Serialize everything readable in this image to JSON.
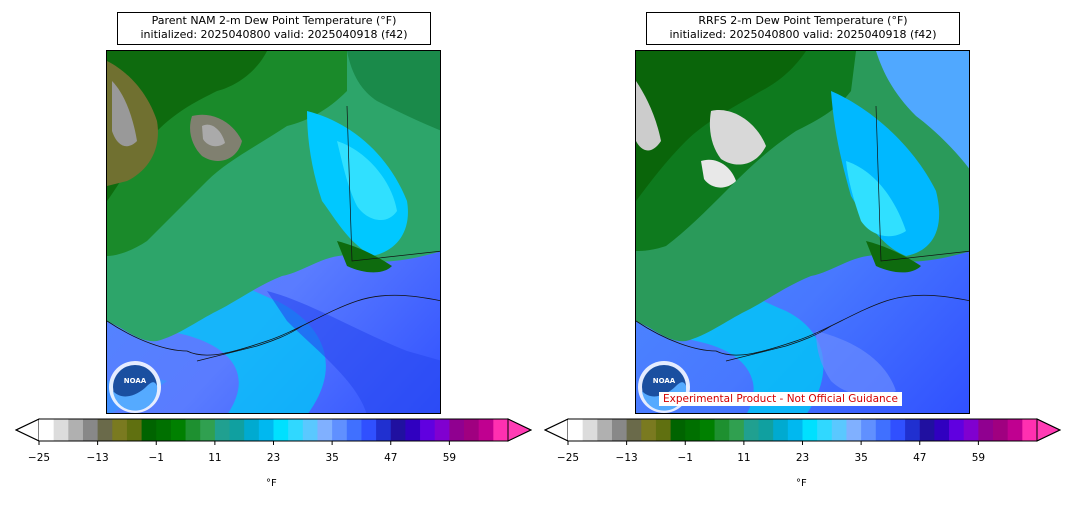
{
  "panels": [
    {
      "id": "nam",
      "title_line1": "Parent NAM 2-m Dew Point Temperature (°F)",
      "title_line2": "initialized: 2025040800 valid: 2025040918 (f42)",
      "logo_text": "NOAA",
      "disclaimer": ""
    },
    {
      "id": "rrfs",
      "title_line1": "RRFS 2-m Dew Point Temperature (°F)",
      "title_line2": "initialized: 2025040800 valid: 2025040918 (f42)",
      "logo_text": "NOAA",
      "disclaimer": "Experimental Product - Not Official Guidance"
    }
  ],
  "colorbar": {
    "unit_label": "°F",
    "tick_labels": [
      "−25",
      "−13",
      "−1",
      "11",
      "23",
      "35",
      "47",
      "59"
    ],
    "colors": [
      "#ffffff",
      "#dcdcdc",
      "#b0b0b0",
      "#888888",
      "#6a6a4a",
      "#7a7a20",
      "#607010",
      "#006400",
      "#007000",
      "#008000",
      "#1e9030",
      "#30a050",
      "#20a090",
      "#10a0a0",
      "#00aad0",
      "#00b8f0",
      "#00e0ff",
      "#30d8ff",
      "#5ac8ff",
      "#80b0ff",
      "#6090ff",
      "#4070ff",
      "#3050ff",
      "#2030d0",
      "#2010a0",
      "#3000c0",
      "#6000e0",
      "#8000d0",
      "#900090",
      "#a00080",
      "#c00090",
      "#ff30b0"
    ],
    "under_color": "#ffffff",
    "over_color": "#ff3cb4"
  }
}
